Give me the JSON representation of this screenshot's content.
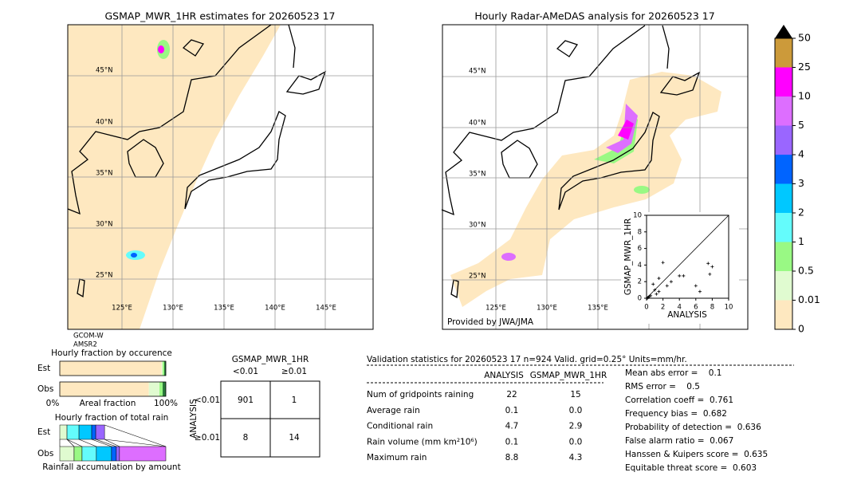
{
  "left_map": {
    "title": "GSMAP_MWR_1HR estimates for 20260523 17",
    "lat_labels": [
      "45°N",
      "40°N",
      "35°N",
      "30°N",
      "25°N"
    ],
    "lon_labels": [
      "125°E",
      "130°E",
      "135°E",
      "140°E",
      "145°E"
    ],
    "satellite": [
      "GCOM-W",
      "AMSR2"
    ]
  },
  "right_map": {
    "title": "Hourly Radar-AMeDAS analysis for 20260523 17",
    "lat_labels": [
      "45°N",
      "40°N",
      "35°N",
      "30°N",
      "25°N"
    ],
    "lon_labels": [
      "125°E",
      "130°E",
      "135°E"
    ],
    "credit": "Provided by JWA/JMA"
  },
  "colorbar": {
    "ticks": [
      0,
      0.01,
      0.5,
      1,
      2,
      3,
      4,
      5,
      10,
      25,
      50
    ],
    "colors": [
      "#fee8c0",
      "#e0fbd0",
      "#99f984",
      "#64fcfc",
      "#00c8ff",
      "#0064ff",
      "#9a66ff",
      "#dd6eff",
      "#ff00ff",
      "#cc9a3a"
    ],
    "extend_color": "#000000"
  },
  "chart_data": {
    "type": "scatter",
    "xlabel": "ANALYSIS",
    "ylabel": "GSMAP_MWR_1HR",
    "x": [
      0.1,
      0.2,
      0.3,
      0.5,
      0.8,
      1.0,
      1.2,
      1.5,
      1.5,
      2.0,
      2.5,
      3.0,
      4.0,
      4.5,
      6.0,
      6.5,
      7.5,
      7.7,
      8.0
    ],
    "values": [
      0.0,
      0.1,
      0.2,
      0.3,
      1.7,
      1.0,
      0.5,
      0.8,
      2.4,
      4.3,
      1.5,
      2.0,
      2.7,
      2.7,
      1.5,
      0.8,
      4.2,
      2.9,
      3.8
    ],
    "color": "#000000",
    "xlim": [
      0,
      10
    ],
    "ylim": [
      0,
      10
    ],
    "xticks": [
      0,
      2,
      4,
      6,
      8,
      10
    ],
    "yticks": [
      0,
      2,
      4,
      6,
      8,
      10
    ]
  },
  "occurrence": {
    "title": "Hourly fraction by occurence",
    "colors": [
      "#fee8c0",
      "#e0fbd0",
      "#99f984",
      "#2a7a3a"
    ],
    "rows": [
      {
        "label": "Est",
        "values": [
          96,
          1,
          1.5,
          1.5
        ]
      },
      {
        "label": "Obs",
        "values": [
          84,
          10,
          3,
          3
        ]
      }
    ],
    "axis_left": "0%",
    "axis_mid": "Areal fraction",
    "axis_right": "100%"
  },
  "total_rain": {
    "title": "Hourly fraction of total rain",
    "colors": [
      "#e0fbd0",
      "#99f984",
      "#64fcfc",
      "#00c8ff",
      "#0064ff",
      "#9a66ff",
      "#dd6eff"
    ],
    "rows": [
      {
        "label": "Est",
        "values": [
          6.8,
          0,
          11.3,
          12,
          3.8,
          8.3,
          0
        ]
      },
      {
        "label": "Obs",
        "values": [
          13.5,
          7.5,
          13.5,
          14.3,
          4.5,
          3,
          43.7
        ]
      }
    ],
    "footer": "Rainfall accumulation by amount"
  },
  "contingency": {
    "title": "GSMAP_MWR_1HR",
    "col_labels": [
      "<0.01",
      "≥0.01"
    ],
    "row_title": "ANALYSIS",
    "row_labels": [
      "<0.01",
      "≥0.01"
    ],
    "cells": [
      [
        901,
        1
      ],
      [
        8,
        14
      ]
    ]
  },
  "stats": {
    "header": "Validation statistics for 20260523 17  n=924 Valid. grid=0.25° Units=mm/hr.",
    "columns": [
      "ANALYSIS",
      "GSMAP_MWR_1HR"
    ],
    "rows": [
      {
        "name": "Num of gridpoints raining",
        "values": [
          "22",
          "15"
        ]
      },
      {
        "name": "Average rain",
        "values": [
          "0.1",
          "0.0"
        ]
      },
      {
        "name": "Conditional rain",
        "values": [
          "4.7",
          "2.9"
        ]
      },
      {
        "name": "Rain volume (mm km²10⁶)",
        "values": [
          "0.1",
          "0.0"
        ]
      },
      {
        "name": "Maximum rain",
        "values": [
          "8.8",
          "4.3"
        ]
      }
    ],
    "scores": [
      "Mean abs error =    0.1",
      "RMS error =    0.5",
      "Correlation coeff =  0.761",
      "Frequency bias =  0.682",
      "Probability of detection =  0.636",
      "False alarm ratio =  0.067",
      "Hanssen & Kuipers score =  0.635",
      "Equitable threat score =  0.603"
    ]
  }
}
